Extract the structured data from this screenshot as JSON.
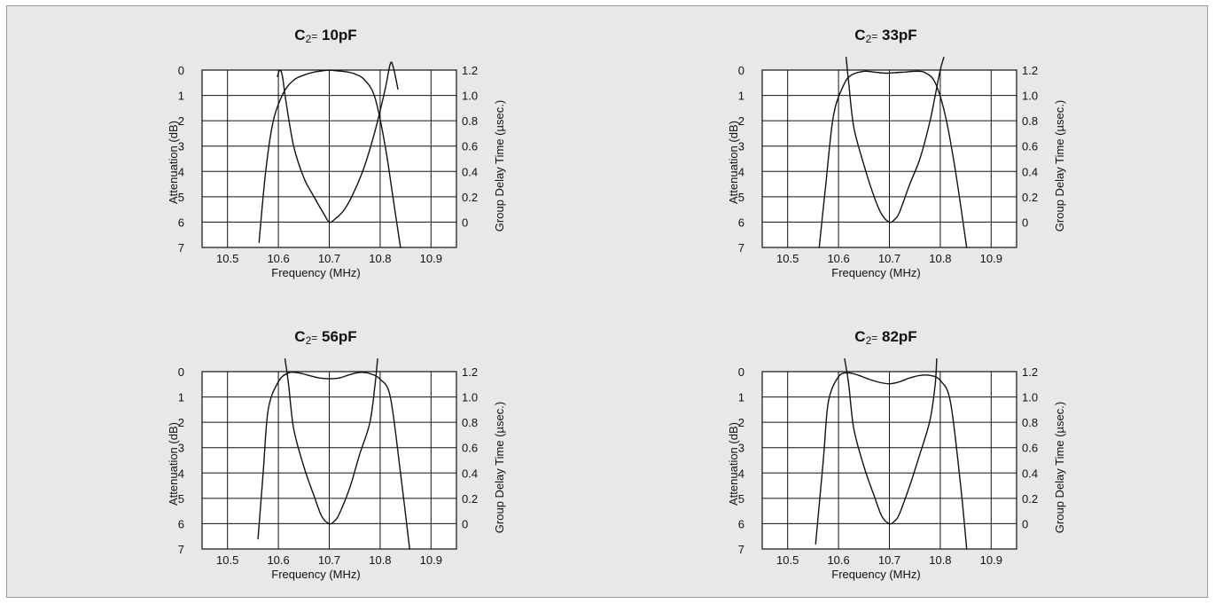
{
  "chart_data": [
    {
      "type": "line",
      "title": "C2= 10pF",
      "title_parts": {
        "main": "C",
        "sub": "2",
        "eq": "=",
        "value": " 10pF"
      },
      "xlabel": "Frequency (MHz)",
      "ylabel": "Attenuation (dB)",
      "y2label": "Group Delay Time (µsec.)",
      "xlim": [
        10.45,
        10.95
      ],
      "ylim": [
        0,
        7
      ],
      "y2lim": [
        -0.2,
        1.2
      ],
      "x_ticks": [
        "10.5",
        "10.6",
        "10.7",
        "10.8",
        "10.9"
      ],
      "y_ticks": [
        "0",
        "1",
        "2",
        "3",
        "4",
        "5",
        "6",
        "7"
      ],
      "y2_ticks": [
        "1.2",
        "1.0",
        "0.8",
        "0.6",
        "0.4",
        "0.2",
        "0"
      ],
      "grid": true,
      "series": [
        {
          "axis": "left",
          "x": [
            10.562,
            10.575,
            10.59,
            10.61,
            10.63,
            10.65,
            10.67,
            10.69,
            10.7,
            10.71,
            10.73,
            10.75,
            10.77,
            10.79,
            10.81,
            10.825,
            10.84
          ],
          "y": [
            6.8,
            4.0,
            2.0,
            0.9,
            0.4,
            0.2,
            0.08,
            0.02,
            0.0,
            0.02,
            0.06,
            0.15,
            0.4,
            1.1,
            3.0,
            5.0,
            7.0
          ]
        },
        {
          "axis": "right",
          "x": [
            10.598,
            10.603,
            10.608,
            10.615,
            10.63,
            10.65,
            10.67,
            10.69,
            10.7,
            10.71,
            10.73,
            10.75,
            10.77,
            10.79,
            10.81,
            10.82,
            10.826,
            10.835
          ],
          "y": [
            1.15,
            1.2,
            1.15,
            0.95,
            0.6,
            0.35,
            0.2,
            0.06,
            0.0,
            0.02,
            0.1,
            0.25,
            0.45,
            0.72,
            1.05,
            1.25,
            1.22,
            1.05
          ]
        }
      ]
    },
    {
      "type": "line",
      "title": "C2= 33pF",
      "title_parts": {
        "main": "C",
        "sub": "2",
        "eq": "=",
        "value": " 33pF"
      },
      "xlabel": "Frequency (MHz)",
      "ylabel": "Attenuation (dB)",
      "y2label": "Group Delay Time (µsec.)",
      "xlim": [
        10.45,
        10.95
      ],
      "ylim": [
        0,
        7
      ],
      "y2lim": [
        -0.2,
        1.2
      ],
      "x_ticks": [
        "10.5",
        "10.6",
        "10.7",
        "10.8",
        "10.9"
      ],
      "y_ticks": [
        "0",
        "1",
        "2",
        "3",
        "4",
        "5",
        "6",
        "7"
      ],
      "y2_ticks": [
        "1.2",
        "1.0",
        "0.8",
        "0.6",
        "0.4",
        "0.2",
        "0"
      ],
      "grid": true,
      "series": [
        {
          "axis": "left",
          "x": [
            10.562,
            10.575,
            10.59,
            10.61,
            10.625,
            10.65,
            10.67,
            10.69,
            10.7,
            10.71,
            10.73,
            10.75,
            10.77,
            10.79,
            10.81,
            10.83,
            10.852
          ],
          "y": [
            7.0,
            4.5,
            1.8,
            0.6,
            0.2,
            0.05,
            0.08,
            0.12,
            0.12,
            0.1,
            0.08,
            0.05,
            0.1,
            0.5,
            1.8,
            4.0,
            7.0
          ]
        },
        {
          "axis": "right",
          "x": [
            10.615,
            10.62,
            10.63,
            10.65,
            10.67,
            10.685,
            10.7,
            10.71,
            10.72,
            10.74,
            10.76,
            10.78,
            10.79,
            10.8,
            10.807
          ],
          "y": [
            1.3,
            1.1,
            0.75,
            0.45,
            0.2,
            0.06,
            0.0,
            0.02,
            0.08,
            0.3,
            0.5,
            0.8,
            1.0,
            1.2,
            1.3
          ]
        }
      ]
    },
    {
      "type": "line",
      "title": "C2= 56pF",
      "title_parts": {
        "main": "C",
        "sub": "2",
        "eq": "=",
        "value": " 56pF"
      },
      "xlabel": "Frequency (MHz)",
      "ylabel": "Attenuation (dB)",
      "y2label": "Group Delay Time (µsec.)",
      "xlim": [
        10.45,
        10.95
      ],
      "ylim": [
        0,
        7
      ],
      "y2lim": [
        -0.2,
        1.2
      ],
      "x_ticks": [
        "10.5",
        "10.6",
        "10.7",
        "10.8",
        "10.9"
      ],
      "y_ticks": [
        "0",
        "1",
        "2",
        "3",
        "4",
        "5",
        "6",
        "7"
      ],
      "y2_ticks": [
        "1.2",
        "1.0",
        "0.8",
        "0.6",
        "0.4",
        "0.2",
        "0"
      ],
      "grid": true,
      "series": [
        {
          "axis": "left",
          "x": [
            10.56,
            10.57,
            10.58,
            10.6,
            10.62,
            10.64,
            10.66,
            10.68,
            10.7,
            10.72,
            10.74,
            10.76,
            10.78,
            10.8,
            10.82,
            10.84,
            10.858
          ],
          "y": [
            6.6,
            4.0,
            1.5,
            0.4,
            0.05,
            0.05,
            0.15,
            0.25,
            0.28,
            0.25,
            0.12,
            0.03,
            0.08,
            0.3,
            1.0,
            4.0,
            7.0
          ]
        },
        {
          "axis": "right",
          "x": [
            10.613,
            10.62,
            10.63,
            10.65,
            10.67,
            10.685,
            10.7,
            10.71,
            10.72,
            10.74,
            10.76,
            10.78,
            10.79,
            10.795
          ],
          "y": [
            1.3,
            1.1,
            0.75,
            0.45,
            0.22,
            0.06,
            0.0,
            0.02,
            0.08,
            0.28,
            0.55,
            0.8,
            1.1,
            1.3
          ]
        }
      ]
    },
    {
      "type": "line",
      "title": "C2= 82pF",
      "title_parts": {
        "main": "C",
        "sub": "2",
        "eq": "=",
        "value": " 82pF"
      },
      "xlabel": "Frequency (MHz)",
      "ylabel": "Attenuation (dB)",
      "y2label": "Group Delay Time (µsec.)",
      "xlim": [
        10.45,
        10.95
      ],
      "ylim": [
        0,
        7
      ],
      "y2lim": [
        -0.2,
        1.2
      ],
      "x_ticks": [
        "10.5",
        "10.6",
        "10.7",
        "10.8",
        "10.9"
      ],
      "y_ticks": [
        "0",
        "1",
        "2",
        "3",
        "4",
        "5",
        "6",
        "7"
      ],
      "y2_ticks": [
        "1.2",
        "1.0",
        "0.8",
        "0.6",
        "0.4",
        "0.2",
        "0"
      ],
      "grid": true,
      "series": [
        {
          "axis": "left",
          "x": [
            10.555,
            10.57,
            10.58,
            10.6,
            10.62,
            10.64,
            10.66,
            10.68,
            10.7,
            10.72,
            10.74,
            10.76,
            10.78,
            10.8,
            10.82,
            10.84,
            10.852
          ],
          "y": [
            6.8,
            3.5,
            1.2,
            0.2,
            0.05,
            0.15,
            0.3,
            0.42,
            0.48,
            0.4,
            0.25,
            0.15,
            0.15,
            0.35,
            1.2,
            4.5,
            7.0
          ]
        },
        {
          "axis": "right",
          "x": [
            10.612,
            10.62,
            10.63,
            10.65,
            10.67,
            10.685,
            10.7,
            10.71,
            10.72,
            10.74,
            10.76,
            10.78,
            10.79,
            10.793
          ],
          "y": [
            1.3,
            1.1,
            0.75,
            0.45,
            0.22,
            0.06,
            0.0,
            0.02,
            0.08,
            0.3,
            0.55,
            0.82,
            1.1,
            1.3
          ]
        }
      ]
    }
  ]
}
